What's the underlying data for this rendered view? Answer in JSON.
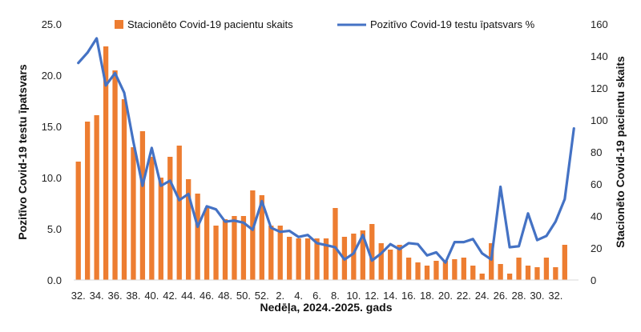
{
  "chart_data": {
    "type": "bar+line",
    "xlabel": "Nedēļa, 2024.-2025. gads",
    "ylabel_left": "Pozitīvo Covid-19 testu īpatsvars",
    "ylabel_right": "Stacionēto Covid-19 pacientu skaits",
    "ylim_left": [
      0,
      25
    ],
    "yticks_left": [
      "0.0",
      "5.0",
      "10.0",
      "15.0",
      "20.0",
      "25.0"
    ],
    "ylim_right": [
      0,
      160
    ],
    "yticks_right": [
      "0",
      "20",
      "40",
      "60",
      "80",
      "100",
      "120",
      "140",
      "160"
    ],
    "x_tick_labels": [
      "32.",
      "34.",
      "36.",
      "38.",
      "40.",
      "42.",
      "44.",
      "46.",
      "48.",
      "50.",
      "52.",
      "2.",
      "4.",
      "6.",
      "8.",
      "10.",
      "12.",
      "14.",
      "16.",
      "18.",
      "20.",
      "22.",
      "24.",
      "26.",
      "28.",
      "30.",
      "32."
    ],
    "legend_position": "top",
    "series": [
      {
        "name": "Stacionēto Covid-19 pacientu skaits",
        "type": "bar",
        "axis": "right",
        "color": "#ED7D31",
        "values": [
          74,
          99,
          103,
          146,
          131,
          113,
          83,
          93,
          77,
          64,
          77,
          84,
          63,
          54,
          45,
          34,
          38,
          40,
          40,
          56,
          53,
          34,
          34,
          27,
          26,
          26,
          26,
          26,
          45,
          27,
          29,
          31,
          35,
          23,
          19,
          22,
          14,
          11,
          9,
          12,
          12,
          13,
          14,
          9,
          4,
          23,
          10,
          4,
          14,
          9,
          8,
          14,
          8,
          22
        ]
      },
      {
        "name": "Pozitīvo Covid-19 testu īpatsvars %",
        "type": "line",
        "axis": "left",
        "color": "#4472C4",
        "values": [
          21.2,
          22.2,
          23.6,
          19.0,
          20.2,
          18.3,
          13.5,
          9.2,
          12.9,
          9.2,
          9.7,
          7.8,
          8.4,
          5.2,
          7.2,
          6.9,
          5.7,
          5.8,
          5.6,
          4.9,
          7.7,
          5.1,
          4.7,
          4.8,
          4.2,
          4.4,
          3.6,
          3.4,
          3.2,
          2.0,
          2.6,
          4.4,
          1.9,
          2.6,
          3.5,
          3.0,
          3.6,
          3.5,
          2.4,
          2.7,
          1.7,
          3.7,
          3.7,
          4.0,
          2.6,
          2.0,
          9.1,
          3.2,
          3.3,
          6.5,
          3.9,
          4.3,
          5.7,
          7.9,
          14.8
        ]
      }
    ]
  }
}
